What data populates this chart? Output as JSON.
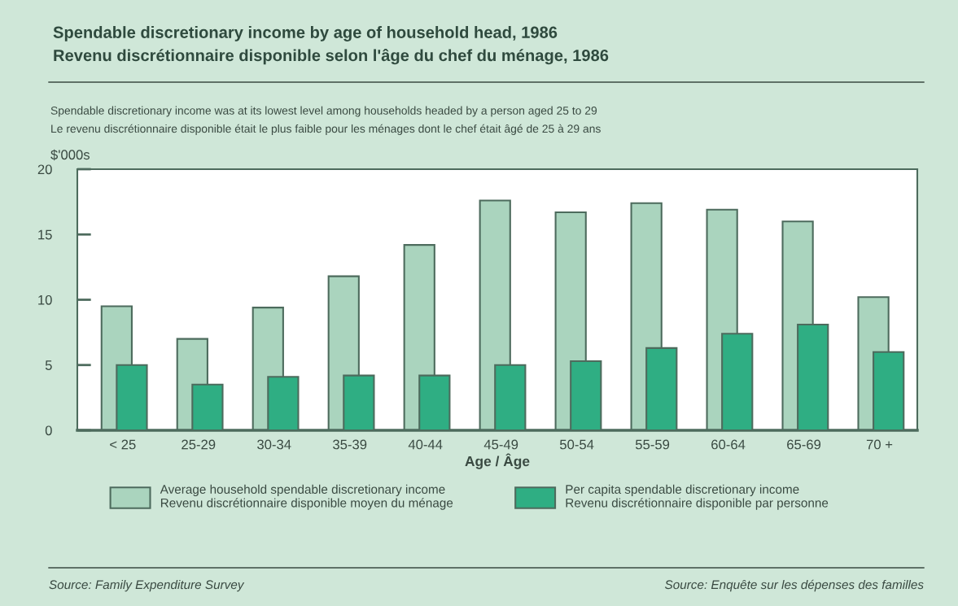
{
  "chart_data": {
    "type": "bar",
    "title": "Spendable discretionary income by age of household head, 1986\nRevenu discrétionnaire disponible selon l'âge du chef du ménage, 1986",
    "subtitle": "Spendable discretionary income was at its lowest level among households headed by a person aged 25 to 29\nLe revenu discrétionnaire disponible était le plus faible pour les ménages dont le chef était âgé de 25 à 29 ans",
    "ylabel": "$'000s",
    "xlabel": "Age / Âge",
    "categories": [
      "< 25",
      "25-29",
      "30-34",
      "35-39",
      "40-44",
      "45-49",
      "50-54",
      "55-59",
      "60-64",
      "65-69",
      "70 +"
    ],
    "series": [
      {
        "name": "Average household spendable discretionary income\nRevenu discrétionnaire disponible moyen du ménage",
        "color": "#aad4be",
        "values": [
          9.5,
          7.0,
          9.4,
          11.8,
          14.2,
          17.6,
          16.7,
          17.4,
          16.9,
          16.0,
          10.2
        ]
      },
      {
        "name": "Per capita spendable discretionary income\nRevenu discrétionnaire disponible par personne",
        "color": "#2fae83",
        "values": [
          5.0,
          3.5,
          4.1,
          4.2,
          4.2,
          5.0,
          5.3,
          6.3,
          7.4,
          8.1,
          6.0
        ]
      }
    ],
    "ylim": [
      0,
      20
    ],
    "yticks": [
      0,
      5,
      10,
      15,
      20
    ],
    "grid": false,
    "legend": "bottom",
    "annotations": [
      "Source: Family Expenditure Survey",
      "Source: Enquête sur les dépenses des familles"
    ]
  }
}
